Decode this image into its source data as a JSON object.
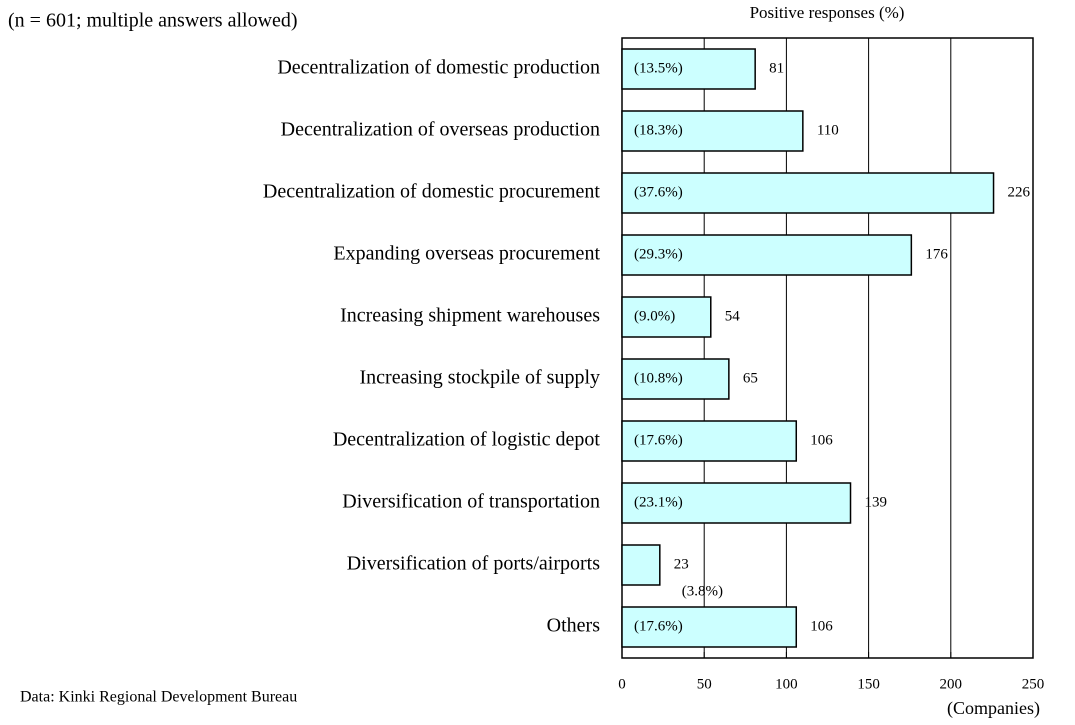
{
  "chart_data": {
    "type": "hbar",
    "note": "(n = 601; multiple answers allowed)",
    "top_label": "Positive responses (%)",
    "x_label": "(Companies)",
    "source": "Data: Kinki Regional Development Bureau",
    "categories": [
      "Decentralization of domestic production",
      "Decentralization of overseas production",
      "Decentralization of domestic procurement",
      "Expanding  overseas procurement",
      "Increasing  shipment warehouses",
      "Increasing stockpile of supply",
      "Decentralization of logistic depot",
      "Diversification of transportation",
      "Diversification of ports/airports",
      "Others"
    ],
    "values": [
      81,
      110,
      226,
      176,
      54,
      65,
      106,
      139,
      23,
      106
    ],
    "share_labels": [
      "(13.5%)",
      "(18.3%)",
      "(37.6%)",
      "(29.3%)",
      "(9.0%)",
      "(10.8%)",
      "(17.6%)",
      "(23.1%)",
      "(3.8%)",
      "(17.6%)"
    ],
    "color": "#ccffff",
    "xlim": [
      0,
      250
    ],
    "xticks": [
      0,
      50,
      100,
      150,
      200,
      250
    ],
    "grid": true
  }
}
